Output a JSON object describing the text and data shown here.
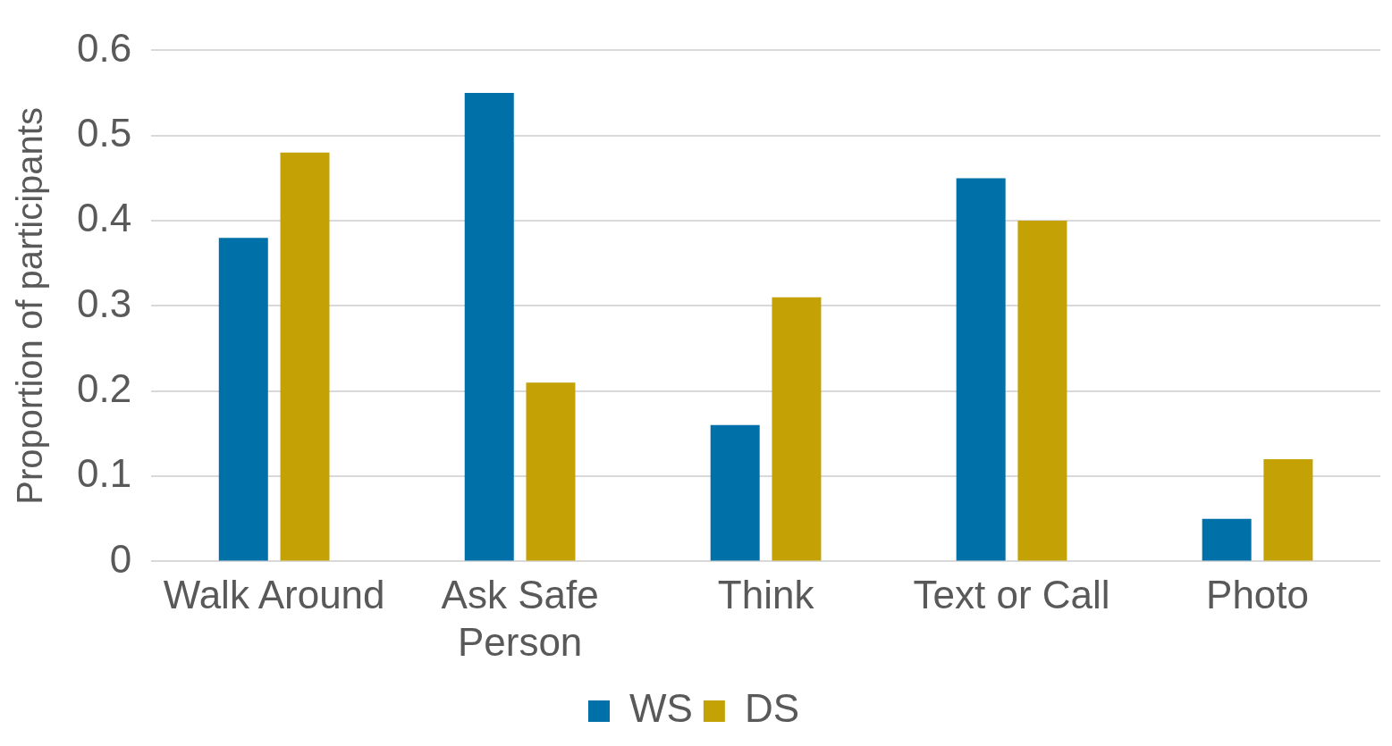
{
  "chart_data": {
    "type": "bar",
    "ylabel": "Proportion of participants",
    "categories": [
      "Walk Around",
      "Ask Safe Person",
      "Think",
      "Text or Call",
      "Photo"
    ],
    "series": [
      {
        "name": "WS",
        "color": "#0070a8",
        "values": [
          0.38,
          0.55,
          0.16,
          0.45,
          0.05
        ]
      },
      {
        "name": "DS",
        "color": "#c4a205",
        "values": [
          0.48,
          0.21,
          0.31,
          0.4,
          0.12
        ]
      }
    ],
    "ylim": [
      0,
      0.6
    ],
    "yticks": [
      0,
      0.1,
      0.2,
      0.3,
      0.4,
      0.5,
      0.6
    ],
    "grid": "y",
    "legend": "bottom"
  }
}
